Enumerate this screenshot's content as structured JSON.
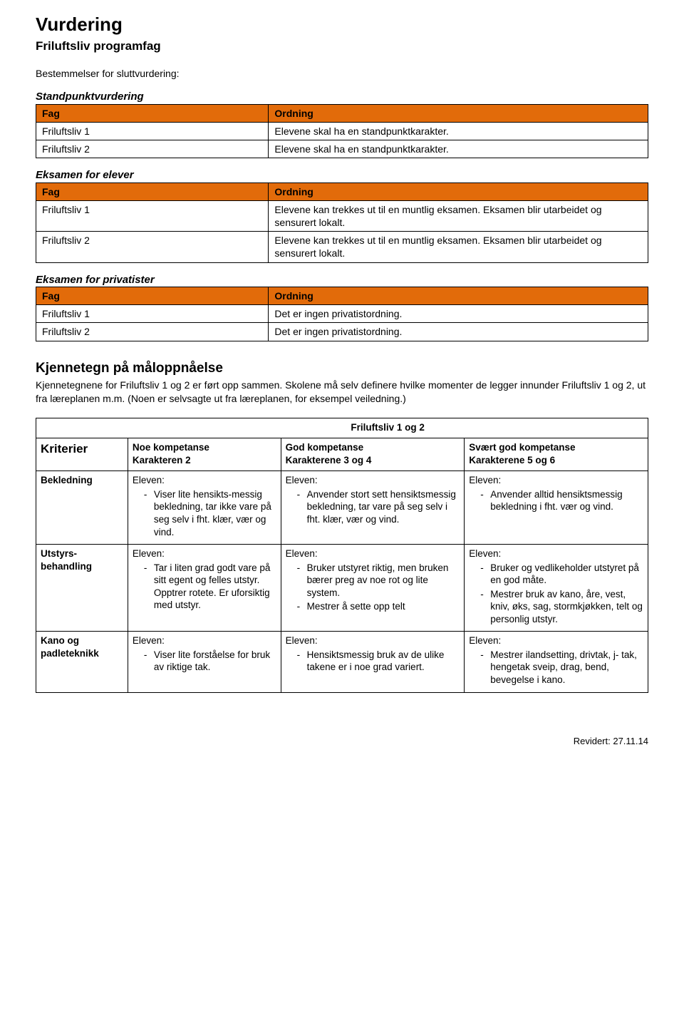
{
  "page": {
    "title": "Vurdering",
    "subtitle": "Friluftsliv programfag",
    "intro": "Bestemmelser for sluttvurdering:"
  },
  "standpunkt": {
    "heading": "Standpunktvurdering",
    "col_fag": "Fag",
    "col_ordning": "Ordning",
    "rows": [
      {
        "fag": "Friluftsliv 1",
        "ordning": "Elevene skal ha en standpunktkarakter."
      },
      {
        "fag": "Friluftsliv 2",
        "ordning": "Elevene skal ha en standpunktkarakter."
      }
    ]
  },
  "elever": {
    "heading": "Eksamen for elever",
    "col_fag": "Fag",
    "col_ordning": "Ordning",
    "rows": [
      {
        "fag": "Friluftsliv 1",
        "ordning": "Elevene kan trekkes ut til en muntlig eksamen. Eksamen blir utarbeidet og sensurert lokalt."
      },
      {
        "fag": "Friluftsliv 2",
        "ordning": "Elevene kan trekkes ut til en muntlig eksamen. Eksamen blir utarbeidet og sensurert lokalt."
      }
    ]
  },
  "privatister": {
    "heading": "Eksamen for privatister",
    "col_fag": "Fag",
    "col_ordning": "Ordning",
    "rows": [
      {
        "fag": "Friluftsliv 1",
        "ordning": "Det er ingen privatistordning."
      },
      {
        "fag": "Friluftsliv 2",
        "ordning": "Det er ingen privatistordning."
      }
    ]
  },
  "kjenn": {
    "title": "Kjennetegn på måloppnåelse",
    "body": "Kjennetegnene for Friluftsliv 1 og 2 er ført opp sammen. Skolene må selv definere hvilke momenter de legger innunder Friluftsliv 1 og 2, ut fra læreplanen m.m. (Noen er selvsagte ut fra læreplanen, for eksempel veiledning.)"
  },
  "grid": {
    "title": "Friluftsliv 1 og 2",
    "kriterier_label": "Kriterier",
    "headers": {
      "noe": {
        "l1": "Noe kompetanse",
        "l2": "Karakteren  2"
      },
      "god": {
        "l1": "God kompetanse",
        "l2": "Karakterene 3 og 4"
      },
      "svaert": {
        "l1": "Svært god kompetanse",
        "l2": "Karakterene 5 og 6"
      }
    },
    "rows": [
      {
        "label": "Bekledning",
        "noe": {
          "lead": "Eleven:",
          "items": [
            "Viser lite hensikts-messig bekledning, tar ikke vare på seg selv i fht. klær, vær og vind."
          ]
        },
        "god": {
          "lead": "Eleven:",
          "items": [
            "Anvender stort sett hensiktsmessig bekledning, tar vare på seg selv i fht. klær, vær og vind."
          ]
        },
        "svaert": {
          "lead": "Eleven:",
          "items": [
            "Anvender alltid hensiktsmessig bekledning i fht. vær og vind."
          ]
        }
      },
      {
        "label": "Utstyrs-behandling",
        "noe": {
          "lead": "Eleven:",
          "items": [
            "Tar i liten grad godt vare på sitt egent og felles utstyr. Opptrer rotete. Er uforsiktig med utstyr."
          ]
        },
        "god": {
          "lead": "Eleven:",
          "items": [
            "Bruker utstyret riktig, men bruken bærer preg av noe rot og lite system.",
            "Mestrer å sette opp telt"
          ]
        },
        "svaert": {
          "lead": "Eleven:",
          "items": [
            "Bruker og vedlikeholder utstyret på en god måte.",
            "Mestrer bruk av kano, åre, vest, kniv, øks, sag, stormkjøkken, telt og personlig utstyr."
          ]
        }
      },
      {
        "label": "Kano og padleteknikk",
        "noe": {
          "lead": "Eleven:",
          "items": [
            "Viser lite forståelse for bruk av riktige tak."
          ]
        },
        "god": {
          "lead": "Eleven:",
          "items": [
            "Hensiktsmessig bruk av de ulike takene er i noe grad variert."
          ]
        },
        "svaert": {
          "lead": "Eleven:",
          "items": [
            "Mestrer ilandsetting, drivtak, j- tak, hengetak sveip, drag, bend, bevegelse i kano."
          ]
        }
      }
    ]
  },
  "footer": "Revidert: 27.11.14"
}
